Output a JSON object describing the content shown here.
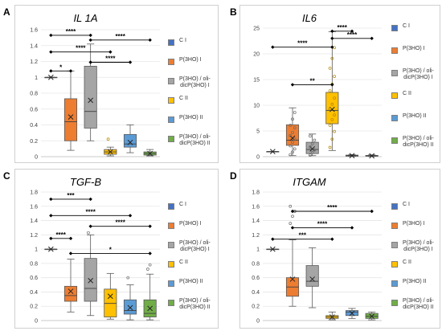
{
  "colors": {
    "C I": "#4472c4",
    "P(3HO) I": "#ed7d31",
    "P(3HO) / oli-dicP(3HO) I": "#a5a5a5",
    "C II": "#ffc000",
    "P(3HO) II": "#5b9bd5",
    "P(3HO) / oli-dicP(3HO) II": "#70ad47"
  },
  "legend": [
    {
      "name": "C I",
      "label": "C I"
    },
    {
      "name": "P(3HO) I",
      "label": "P(3HO) I"
    },
    {
      "name": "P(3HO) / oli-dicP(3HO) I",
      "label": "P(3HO) / oli-\ndicP(3HO)  I"
    },
    {
      "name": "C II",
      "label": "C II"
    },
    {
      "name": "P(3HO) II",
      "label": "P(3HO) II"
    },
    {
      "name": "P(3HO) / oli-dicP(3HO) II",
      "label": "P(3HO) / oli-\ndicP(3HO) II"
    }
  ],
  "chart_data": [
    {
      "panel": "A",
      "title": "IL 1A",
      "type": "box",
      "ylim": [
        0,
        1.6
      ],
      "yticks": [
        0,
        0.2,
        0.4,
        0.6,
        0.8,
        1,
        1.2,
        1.4,
        1.6
      ],
      "series": [
        {
          "name": "C I",
          "min": 1,
          "q1": 1,
          "median": 1,
          "q3": 1,
          "max": 1,
          "mean": 1,
          "points": []
        },
        {
          "name": "P(3HO) I",
          "min": 0.08,
          "q1": 0.2,
          "median": 0.44,
          "q3": 0.73,
          "max": 1.08,
          "mean": 0.5,
          "points": []
        },
        {
          "name": "P(3HO) / oli-dicP(3HO) I",
          "min": 0.2,
          "q1": 0.36,
          "median": 0.57,
          "q3": 1.14,
          "max": 1.42,
          "mean": 0.71,
          "points": []
        },
        {
          "name": "C II",
          "min": 0.01,
          "q1": 0.03,
          "median": 0.06,
          "q3": 0.09,
          "max": 0.12,
          "mean": 0.06,
          "points": [
            0.22
          ]
        },
        {
          "name": "P(3HO) II",
          "min": 0.05,
          "q1": 0.12,
          "median": 0.16,
          "q3": 0.28,
          "max": 0.4,
          "mean": 0.18,
          "points": []
        },
        {
          "name": "P(3HO) / oli-dicP(3HO) II",
          "min": 0.01,
          "q1": 0.02,
          "median": 0.04,
          "q3": 0.06,
          "max": 0.09,
          "mean": 0.04,
          "points": []
        }
      ],
      "brackets": [
        {
          "from": 1,
          "to": 3,
          "y": 1.53,
          "label": "****"
        },
        {
          "from": 3,
          "to": 6,
          "y": 1.47,
          "label": "****"
        },
        {
          "from": 1,
          "to": 4,
          "y": 1.32,
          "label": "****"
        },
        {
          "from": 3,
          "to": 5,
          "y": 1.19,
          "label": "****"
        },
        {
          "from": 1,
          "to": 2,
          "y": 1.08,
          "label": "*"
        }
      ]
    },
    {
      "panel": "B",
      "title": "IL6",
      "type": "box",
      "ylim": [
        0,
        25
      ],
      "yticks": [
        0,
        5,
        10,
        15,
        20,
        25
      ],
      "series": [
        {
          "name": "C I",
          "min": 1,
          "q1": 1,
          "median": 1,
          "q3": 1,
          "max": 1,
          "mean": 1,
          "points": []
        },
        {
          "name": "P(3HO) I",
          "min": 0.2,
          "q1": 2.2,
          "median": 3.2,
          "q3": 6.2,
          "max": 9.5,
          "mean": 3.6,
          "points": [
            0.4,
            0.9,
            1.5,
            2.1,
            2.8,
            3.4,
            4.1,
            4.7,
            5.6,
            6.1,
            7.3,
            8.6
          ]
        },
        {
          "name": "P(3HO) / oli-dicP(3HO) I",
          "min": 0.2,
          "q1": 0.6,
          "median": 1.4,
          "q3": 2.8,
          "max": 4.4,
          "mean": 1.5,
          "points": [
            0.3,
            0.8,
            1.3,
            1.9,
            2.5,
            3.2,
            4.0
          ]
        },
        {
          "name": "C II",
          "min": 1.2,
          "q1": 6.4,
          "median": 9.0,
          "q3": 12.5,
          "max": 24.3,
          "mean": 9.2,
          "points": [
            1.8,
            3.4,
            4.9,
            6.1,
            7.2,
            8.1,
            9.3,
            10.2,
            11.4,
            12.8,
            14.1,
            15.6,
            17.2,
            19.1,
            21.2
          ]
        },
        {
          "name": "P(3HO) II",
          "min": 0.05,
          "q1": 0.1,
          "median": 0.2,
          "q3": 0.3,
          "max": 0.4,
          "mean": 0.2,
          "points": []
        },
        {
          "name": "P(3HO) / oli-dicP(3HO) II",
          "min": 0.05,
          "q1": 0.1,
          "median": 0.15,
          "q3": 0.25,
          "max": 0.35,
          "mean": 0.15,
          "points": []
        }
      ],
      "brackets": [
        {
          "from": 4,
          "to": 5,
          "y": 24.4,
          "label": "****"
        },
        {
          "from": 4,
          "to": 6,
          "y": 23.0,
          "label": "****"
        },
        {
          "from": 1,
          "to": 4,
          "y": 21.3,
          "label": "****"
        },
        {
          "from": 2,
          "to": 4,
          "y": 14.0,
          "label": "**"
        }
      ]
    },
    {
      "panel": "C",
      "title": "TGF-B",
      "type": "box",
      "ylim": [
        0,
        1.8
      ],
      "yticks": [
        0,
        0.2,
        0.4,
        0.6,
        0.8,
        1,
        1.2,
        1.4,
        1.6,
        1.8
      ],
      "series": [
        {
          "name": "C I",
          "min": 1,
          "q1": 1,
          "median": 1,
          "q3": 1,
          "max": 1,
          "mean": 1,
          "points": []
        },
        {
          "name": "P(3HO) I",
          "min": 0.12,
          "q1": 0.27,
          "median": 0.35,
          "q3": 0.48,
          "max": 0.86,
          "mean": 0.41,
          "points": []
        },
        {
          "name": "P(3HO) / oli-dicP(3HO) I",
          "min": 0.07,
          "q1": 0.27,
          "median": 0.45,
          "q3": 0.87,
          "max": 1.2,
          "mean": 0.56,
          "points": [
            1.23
          ]
        },
        {
          "name": "C II",
          "min": 0.02,
          "q1": 0.05,
          "median": 0.24,
          "q3": 0.44,
          "max": 0.66,
          "mean": 0.34,
          "points": []
        },
        {
          "name": "P(3HO) II",
          "min": 0.01,
          "q1": 0.09,
          "median": 0.14,
          "q3": 0.29,
          "max": 0.5,
          "mean": 0.18,
          "points": [
            0.6
          ]
        },
        {
          "name": "P(3HO) / oli-dicP(3HO) II",
          "min": 0.01,
          "q1": 0.05,
          "median": 0.1,
          "q3": 0.29,
          "max": 0.65,
          "mean": 0.17,
          "points": [
            0.72,
            0.78
          ]
        }
      ],
      "brackets": [
        {
          "from": 1,
          "to": 3,
          "y": 1.7,
          "label": "***"
        },
        {
          "from": 1,
          "to": 5,
          "y": 1.47,
          "label": "****"
        },
        {
          "from": 3,
          "to": 6,
          "y": 1.32,
          "label": "****"
        },
        {
          "from": 1,
          "to": 2,
          "y": 1.15,
          "label": "****"
        },
        {
          "from": 2,
          "to": 6,
          "y": 0.94,
          "label": "*"
        }
      ]
    },
    {
      "panel": "D",
      "title": "ITGAM",
      "type": "box",
      "ylim": [
        0,
        1.8
      ],
      "yticks": [
        0,
        0.2,
        0.4,
        0.6,
        0.8,
        1,
        1.2,
        1.4,
        1.6,
        1.8
      ],
      "series": [
        {
          "name": "C I",
          "min": 1,
          "q1": 1,
          "median": 1,
          "q3": 1,
          "max": 1,
          "mean": 1,
          "points": []
        },
        {
          "name": "P(3HO) I",
          "min": 0.2,
          "q1": 0.34,
          "median": 0.47,
          "q3": 0.6,
          "max": 1.13,
          "mean": 0.58,
          "points": [
            1.36,
            1.46,
            1.53,
            1.6
          ]
        },
        {
          "name": "P(3HO) / oli-dicP(3HO) I",
          "min": 0.18,
          "q1": 0.48,
          "median": 0.55,
          "q3": 0.77,
          "max": 1.02,
          "mean": 0.58,
          "points": []
        },
        {
          "name": "C II",
          "min": 0.01,
          "q1": 0.03,
          "median": 0.05,
          "q3": 0.07,
          "max": 0.12,
          "mean": 0.05,
          "points": []
        },
        {
          "name": "P(3HO) II",
          "min": 0.03,
          "q1": 0.07,
          "median": 0.12,
          "q3": 0.14,
          "max": 0.17,
          "mean": 0.1,
          "points": []
        },
        {
          "name": "P(3HO) / oli-dicP(3HO) II",
          "min": 0.01,
          "q1": 0.03,
          "median": 0.06,
          "q3": 0.1,
          "max": 0.12,
          "mean": 0.06,
          "points": []
        }
      ],
      "brackets": [
        {
          "from": 2,
          "to": 6,
          "y": 1.53,
          "label": "****"
        },
        {
          "from": 2,
          "to": 5,
          "y": 1.3,
          "label": "****"
        },
        {
          "from": 1,
          "to": 4,
          "y": 1.14,
          "label": "***"
        }
      ]
    }
  ]
}
